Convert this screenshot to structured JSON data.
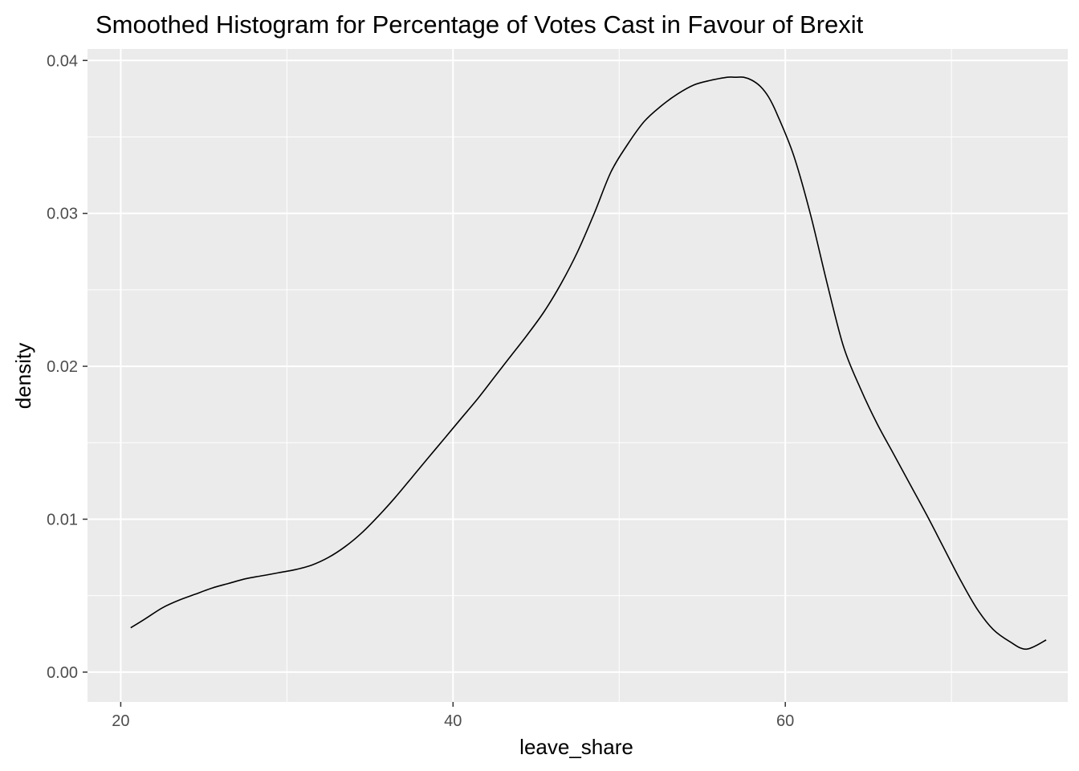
{
  "chart_data": {
    "type": "line",
    "title": "Smoothed Histogram for Percentage of Votes Cast in Favour of Brexit",
    "xlabel": "leave_share",
    "ylabel": "density",
    "xlim": [
      18,
      77
    ],
    "ylim": [
      -0.00195,
      0.04075
    ],
    "x_ticks": [
      20,
      40,
      60
    ],
    "x_tick_labels": [
      "20",
      "40",
      "60"
    ],
    "x_minor_ticks": [
      30,
      50,
      70
    ],
    "y_ticks": [
      0,
      0.01,
      0.02,
      0.03,
      0.04
    ],
    "y_tick_labels": [
      "0.00",
      "0.01",
      "0.02",
      "0.03",
      "0.04"
    ],
    "y_minor_ticks": [
      0.005,
      0.015,
      0.025,
      0.035
    ],
    "grid": true,
    "series": [
      {
        "x": [
          20.6,
          21.5,
          22.5,
          23.5,
          24.5,
          25.5,
          26.5,
          27.5,
          28.5,
          29.5,
          30.5,
          31.5,
          32.5,
          33.5,
          34.5,
          35.5,
          36.5,
          37.5,
          38.5,
          39.5,
          40.5,
          41.5,
          42.5,
          43.5,
          44.5,
          45.5,
          46.5,
          47.5,
          48.5,
          49.5,
          50.5,
          51.5,
          52.5,
          53.5,
          54.5,
          55.5,
          56.5,
          57.0,
          57.5,
          58.0,
          58.5,
          59.0,
          59.5,
          60.5,
          61.5,
          62.5,
          63.5,
          64.5,
          65.5,
          66.5,
          67.5,
          68.5,
          69.5,
          70.5,
          71.5,
          72.5,
          73.5,
          74.5,
          75.7
        ],
        "y": [
          0.0029,
          0.0035,
          0.0042,
          0.0047,
          0.0051,
          0.0055,
          0.0058,
          0.0061,
          0.0063,
          0.0065,
          0.0067,
          0.007,
          0.0075,
          0.0082,
          0.0091,
          0.0102,
          0.0114,
          0.0127,
          0.014,
          0.0153,
          0.0166,
          0.0179,
          0.0193,
          0.0207,
          0.0221,
          0.0236,
          0.0254,
          0.0275,
          0.03,
          0.0327,
          0.0345,
          0.036,
          0.037,
          0.0378,
          0.0384,
          0.0387,
          0.0389,
          0.0389,
          0.0389,
          0.0387,
          0.0383,
          0.0376,
          0.0365,
          0.0338,
          0.03,
          0.0255,
          0.0213,
          0.0186,
          0.0163,
          0.0143,
          0.0123,
          0.0103,
          0.0082,
          0.0061,
          0.0042,
          0.0028,
          0.002,
          0.0015,
          0.0021
        ]
      }
    ]
  }
}
